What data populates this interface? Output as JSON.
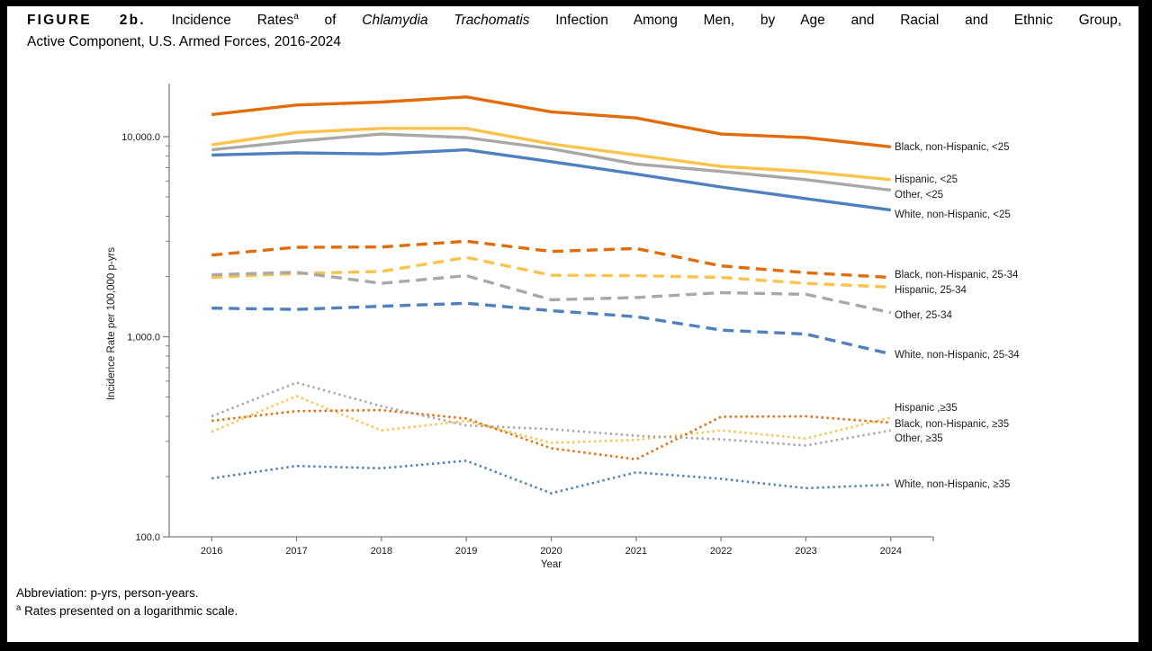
{
  "title": {
    "figure_label": "FIGURE 2b.",
    "segment_rates": "Incidence Rates",
    "footnote_marker": "a",
    "segment_of": "of",
    "organism": "Chlamydia Trachomatis",
    "segment_rest": "Infection Among Men, by Age and Racial and Ethnic Group,",
    "line2": "Active Component, U.S. Armed Forces, 2016-2024"
  },
  "footnotes": {
    "abbreviation": "Abbreviation: p-yrs, person-years.",
    "marker": "a",
    "note": "Rates presented on a logarithmic scale."
  },
  "chart_data": {
    "type": "line",
    "x_categories": [
      "2016",
      "2017",
      "2018",
      "2019",
      "2020",
      "2021",
      "2022",
      "2023",
      "2024"
    ],
    "xlabel": "Year",
    "ylabel": "Incidence Rate per 100,000 p-yrs",
    "y_scale": "log10",
    "ylim": [
      100,
      18500
    ],
    "grid": false,
    "legend_position": "line-end-labels-right",
    "y_ticks": [
      {
        "value": 100,
        "label": "100.0"
      },
      {
        "value": 1000,
        "label": "1,000.0"
      },
      {
        "value": 10000,
        "label": "10,000.0"
      }
    ],
    "series": [
      {
        "name": "Black, non-Hispanic, <25",
        "color": "#E36C0A",
        "style": "solid",
        "label_y": 163,
        "values": [
          12900,
          14400,
          14900,
          15800,
          13300,
          12400,
          10300,
          9900,
          8900
        ]
      },
      {
        "name": "Hispanic, <25",
        "color": "#FBC34B",
        "style": "solid",
        "label_y": 199,
        "values": [
          9100,
          10500,
          11000,
          11000,
          9200,
          8100,
          7100,
          6700,
          6100
        ]
      },
      {
        "name": "Other,  <25",
        "color": "#A8A8A8",
        "style": "solid",
        "label_y": 216,
        "values": [
          8600,
          9500,
          10300,
          9900,
          8700,
          7300,
          6700,
          6100,
          5400
        ]
      },
      {
        "name": "White, non-Hispanic, <25",
        "color": "#4E81BD",
        "style": "solid",
        "label_y": 238,
        "values": [
          8100,
          8300,
          8200,
          8600,
          7500,
          6500,
          5600,
          4900,
          4300
        ]
      },
      {
        "name": "Black, non-Hispanic, 25-34",
        "color": "#E36C0A",
        "style": "dashed",
        "label_y": 305,
        "values": [
          2560,
          2800,
          2810,
          3000,
          2670,
          2760,
          2260,
          2090,
          1980
        ]
      },
      {
        "name": "Hispanic, 25-34",
        "color": "#FBC34B",
        "style": "dashed",
        "label_y": 322,
        "values": [
          1980,
          2070,
          2120,
          2490,
          2030,
          2020,
          1980,
          1850,
          1770
        ]
      },
      {
        "name": "Other, 25-34",
        "color": "#A8A8A8",
        "style": "dashed",
        "label_y": 350,
        "values": [
          2040,
          2100,
          1850,
          2020,
          1530,
          1570,
          1660,
          1630,
          1320
        ]
      },
      {
        "name": "White, non-Hispanic, 25-34",
        "color": "#4E81BD",
        "style": "dashed",
        "label_y": 394,
        "values": [
          1390,
          1370,
          1420,
          1470,
          1350,
          1260,
          1080,
          1030,
          820
        ]
      },
      {
        "name": "Hispanic ,≥35",
        "color": "#FBC34B",
        "style": "dotted",
        "label_y": 453,
        "values": [
          335,
          505,
          340,
          380,
          295,
          305,
          340,
          310,
          395
        ]
      },
      {
        "name": "Black, non-Hispanic, ≥35",
        "color": "#E36C0A",
        "style": "dotted",
        "label_y": 471,
        "values": [
          380,
          425,
          430,
          390,
          277,
          244,
          398,
          400,
          372
        ]
      },
      {
        "name": "Other, ≥35",
        "color": "#A8A8A8",
        "style": "dotted",
        "label_y": 487,
        "values": [
          400,
          590,
          450,
          360,
          345,
          320,
          307,
          286,
          340
        ]
      },
      {
        "name": "White, non-Hispanic, ≥35",
        "color": "#4E81BD",
        "style": "dotted",
        "label_y": 538,
        "values": [
          196,
          226,
          220,
          240,
          165,
          210,
          195,
          175,
          182
        ]
      }
    ],
    "axis_color": "#7f7f7f"
  }
}
